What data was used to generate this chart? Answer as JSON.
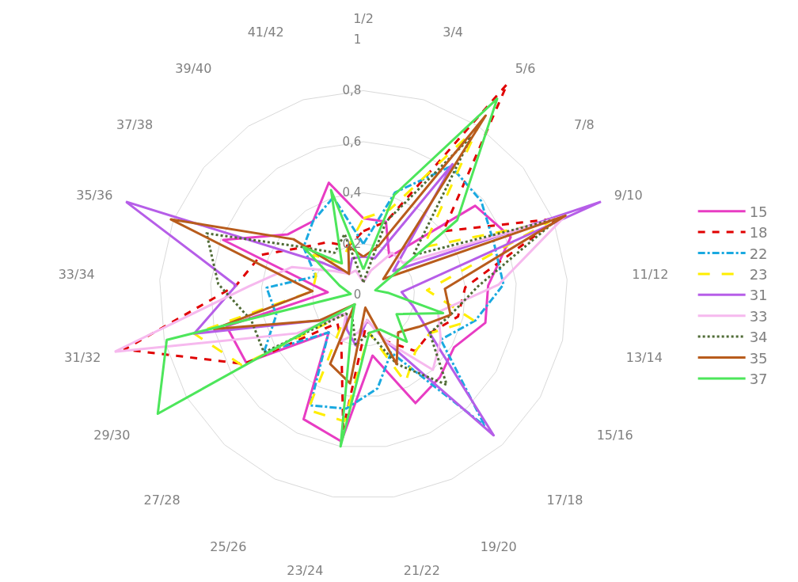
{
  "chart_data": {
    "type": "radar",
    "categories": [
      "1/2",
      "3/4",
      "5/6",
      "7/8",
      "9/10",
      "11/12",
      "13/14",
      "15/16",
      "17/18",
      "19/20",
      "21/22",
      "23/24",
      "25/26",
      "27/28",
      "29/30",
      "31/32",
      "33/34",
      "35/36",
      "37/38",
      "39/40",
      "41/42"
    ],
    "ylim": [
      0,
      1
    ],
    "yticks": [
      0,
      {
        "value": 0.2,
        "label": "0,2"
      },
      {
        "value": 0.4,
        "label": "0,4"
      },
      {
        "value": 0.6,
        "label": "0,6"
      },
      {
        "value": 0.8,
        "label": "0,8"
      },
      1
    ],
    "grid": "y",
    "legend": "right",
    "marker": "none",
    "series": [
      {
        "name": "15",
        "color": "#e83cc3",
        "line_style": "solid",
        "values": [
          0.3,
          0.3,
          0.18,
          0.56,
          0.62,
          0.49,
          0.49,
          0.41,
          0.44,
          0.47,
          0.24,
          0.58,
          0.54,
          0.2,
          0.53,
          0.55,
          0.14,
          0.59,
          0.38,
          0.35,
          0.46
        ]
      },
      {
        "name": "18",
        "color": "#e00000",
        "line_style": "dashed",
        "values": [
          0.25,
          0.3,
          1.0,
          0.4,
          0.82,
          0.4,
          0.38,
          0.3,
          0.3,
          0.2,
          0.1,
          0.53,
          0.2,
          0.15,
          0.54,
          0.96,
          0.5,
          0.43,
          0.3,
          0.25,
          0.2
        ]
      },
      {
        "name": "22",
        "color": "#1aa9e0",
        "line_style": "dashdot",
        "values": [
          0.2,
          0.42,
          0.61,
          0.59,
          0.55,
          0.55,
          0.45,
          0.35,
          0.7,
          0.25,
          0.37,
          0.45,
          0.48,
          0.2,
          0.45,
          0.35,
          0.38,
          0.2,
          0.3,
          0.35,
          0.4
        ]
      },
      {
        "name": "23",
        "color": "#ffee00",
        "line_style": "longdash",
        "values": [
          0.3,
          0.35,
          0.8,
          0.3,
          0.78,
          0.25,
          0.44,
          0.3,
          0.3,
          0.38,
          0.15,
          0.5,
          0.5,
          0.1,
          0.55,
          0.68,
          0.2,
          0.2,
          0.25,
          0.15,
          0.2
        ]
      },
      {
        "name": "31",
        "color": "#b65ee8",
        "line_style": "solid",
        "values": [
          0.15,
          0.15,
          0.62,
          0.15,
          1.0,
          0.15,
          0.2,
          0.3,
          0.75,
          0.2,
          0.1,
          0.2,
          0.15,
          0.1,
          0.2,
          0.68,
          0.5,
          1.0,
          0.2,
          0.1,
          0.15
        ]
      },
      {
        "name": "33",
        "color": "#f6b9ee",
        "line_style": "solid",
        "values": [
          0.05,
          0.1,
          0.2,
          0.2,
          0.85,
          0.53,
          0.3,
          0.35,
          0.4,
          0.2,
          0.1,
          0.15,
          0.2,
          0.1,
          0.3,
          1.0,
          0.45,
          0.3,
          0.15,
          0.1,
          0.1
        ]
      },
      {
        "name": "34",
        "color": "#4f6b35",
        "line_style": "dotted",
        "values": [
          0.05,
          0.3,
          0.75,
          0.25,
          0.82,
          0.45,
          0.35,
          0.3,
          0.48,
          0.3,
          0.15,
          0.2,
          0.1,
          0.1,
          0.45,
          0.45,
          0.57,
          0.66,
          0.3,
          0.2,
          0.25
        ]
      },
      {
        "name": "35",
        "color": "#b85c1c",
        "line_style": "solid",
        "values": [
          0.15,
          0.2,
          0.85,
          0.1,
          0.85,
          0.32,
          0.35,
          0.25,
          0.2,
          0.3,
          0.05,
          0.35,
          0.3,
          0.05,
          0.2,
          0.6,
          0.2,
          0.81,
          0.35,
          0.1,
          0.2
        ]
      },
      {
        "name": "37",
        "color": "#4de65b",
        "line_style": "solid",
        "values": [
          0.1,
          0.41,
          0.93,
          0.47,
          0.05,
          0.1,
          0.32,
          0.15,
          0.25,
          0.15,
          0.15,
          0.6,
          0.1,
          0.05,
          0.93,
          0.79,
          0.05,
          0.1,
          0.3,
          0.15,
          0.43
        ]
      }
    ]
  }
}
